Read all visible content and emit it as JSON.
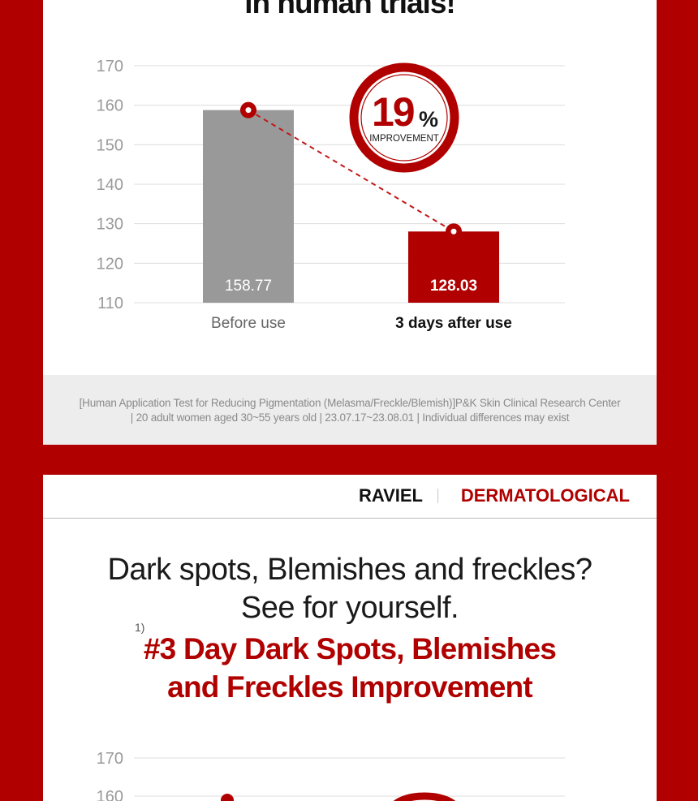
{
  "section1": {
    "headline": "in human trials!",
    "badge": {
      "value": "19",
      "unit": "%",
      "label": "IMPROVEMENT"
    },
    "footnote_line1": "[Human Application Test for Reducing Pigmentation (Melasma/Freckle/Blemish)]P&K Skin Clinical Research Center",
    "footnote_line2": "|   20 adult women aged 30~55 years old   |   23.07.17~23.08.01   |   Individual differences may exist"
  },
  "chart_data": [
    {
      "type": "bar",
      "categories": [
        "Before use",
        "3 days after use"
      ],
      "values": [
        158.77,
        128.03
      ],
      "value_labels": [
        "158.77",
        "128.03"
      ],
      "ylim": [
        110,
        170
      ],
      "yticks": [
        170,
        160,
        150,
        140,
        130,
        120,
        110
      ],
      "grid": true,
      "colors": [
        "#999999",
        "#b00000"
      ],
      "trend_line": "dashed",
      "annotation": "19% IMPROVEMENT"
    },
    {
      "type": "bar",
      "ylim": [
        110,
        170
      ],
      "yticks_visible": [
        170,
        160
      ],
      "grid": true
    }
  ],
  "section2": {
    "brand": "RAVIEL",
    "tag": "DERMATOLOGICAL",
    "subtitle_line1": "Dark spots, Blemishes and freckles?",
    "subtitle_line2": "See for yourself.",
    "superscript": "1)",
    "highlight_line1": "#3 Day Dark Spots, Blemishes",
    "highlight_line2": "and Freckles Improvement"
  },
  "colors": {
    "brand_red": "#b00000",
    "gray_bar": "#999999"
  }
}
